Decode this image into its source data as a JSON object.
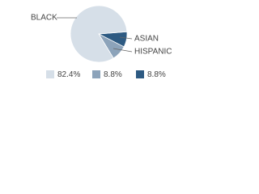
{
  "chart_data": {
    "type": "pie",
    "categories": [
      "BLACK",
      "HISPANIC",
      "ASIAN"
    ],
    "values": [
      82.4,
      8.8,
      8.8
    ],
    "value_labels": [
      "82.4%",
      "8.8%",
      "8.8%"
    ],
    "colors": [
      "#d6dfe8",
      "#8ca3ba",
      "#2d5a82"
    ]
  }
}
